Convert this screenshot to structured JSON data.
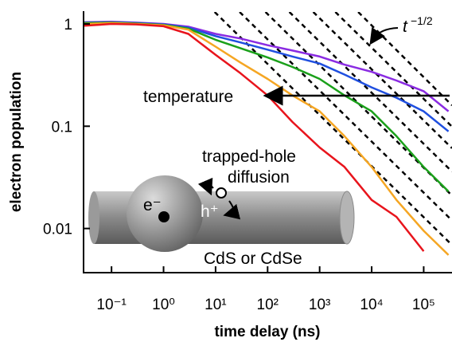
{
  "chart_data": {
    "type": "line",
    "x_label": "time delay (ns)",
    "y_label": "electron population",
    "log_x": true,
    "log_y": true,
    "xlim": [
      0.029,
      350000
    ],
    "ylim": [
      0.0037,
      1.31
    ],
    "xticks": [
      {
        "value": 0.1,
        "label": "10⁻¹"
      },
      {
        "value": 1,
        "label": "10⁰"
      },
      {
        "value": 10,
        "label": "10¹"
      },
      {
        "value": 100,
        "label": "10²"
      },
      {
        "value": 1000,
        "label": "10³"
      },
      {
        "value": 10000,
        "label": "10⁴"
      },
      {
        "value": 100000,
        "label": "10⁵"
      }
    ],
    "yticks": [
      1,
      0.1,
      0.01
    ],
    "x": [
      0.03,
      0.1,
      0.3,
      1,
      3,
      10,
      30,
      100,
      300,
      1000,
      3000,
      10000,
      30000,
      100000,
      300000
    ],
    "series": [
      {
        "color": "#8a2be2",
        "values": [
          1.04,
          1.05,
          1.03,
          1.0,
          0.94,
          0.8,
          0.72,
          0.62,
          0.55,
          0.48,
          0.4,
          0.34,
          0.28,
          0.22,
          0.14
        ]
      },
      {
        "color": "#1f4fe0",
        "values": [
          1.03,
          1.04,
          1.02,
          0.99,
          0.92,
          0.76,
          0.66,
          0.56,
          0.48,
          0.41,
          0.32,
          0.24,
          0.19,
          0.14,
          0.089
        ]
      },
      {
        "color": "#1aa01a",
        "values": [
          1.02,
          1.03,
          1.01,
          0.98,
          0.9,
          0.7,
          0.58,
          0.47,
          0.38,
          0.29,
          0.2,
          0.14,
          0.08,
          0.04,
          0.023
        ]
      },
      {
        "color": "#f5a623",
        "values": [
          1.0,
          1.02,
          1.0,
          0.97,
          0.88,
          0.6,
          0.42,
          0.29,
          0.2,
          0.14,
          0.08,
          0.04,
          0.019,
          0.0095,
          0.0055
        ]
      },
      {
        "color": "#e8141c",
        "values": [
          0.96,
          1.0,
          0.99,
          0.95,
          0.8,
          0.5,
          0.33,
          0.2,
          0.11,
          0.062,
          0.04,
          0.019,
          0.013,
          0.006,
          null
        ]
      }
    ],
    "guide_color": "#000000",
    "guides": [
      {
        "x": [
          9.6,
          350000
        ],
        "values": [
          1.31,
          0.0069
        ]
      },
      {
        "x": [
          29,
          350000
        ],
        "values": [
          1.31,
          0.012
        ]
      },
      {
        "x": [
          91,
          350000
        ],
        "values": [
          1.31,
          0.021
        ]
      },
      {
        "x": [
          262,
          350000
        ],
        "values": [
          1.31,
          0.036
        ]
      },
      {
        "x": [
          753,
          350000
        ],
        "values": [
          1.31,
          0.061
        ]
      },
      {
        "x": [
          2000,
          350000
        ],
        "values": [
          1.31,
          0.099
        ]
      },
      {
        "x": [
          5500,
          350000
        ],
        "values": [
          1.31,
          0.16
        ]
      }
    ],
    "annotations": {
      "slope_base": "t",
      "slope_exponent": "−1/2",
      "temperature": "temperature",
      "trapped": "trapped-hole",
      "diffusion": "diffusion",
      "electron": "e⁻",
      "hole": "h⁺",
      "material": "CdS or CdSe"
    }
  }
}
